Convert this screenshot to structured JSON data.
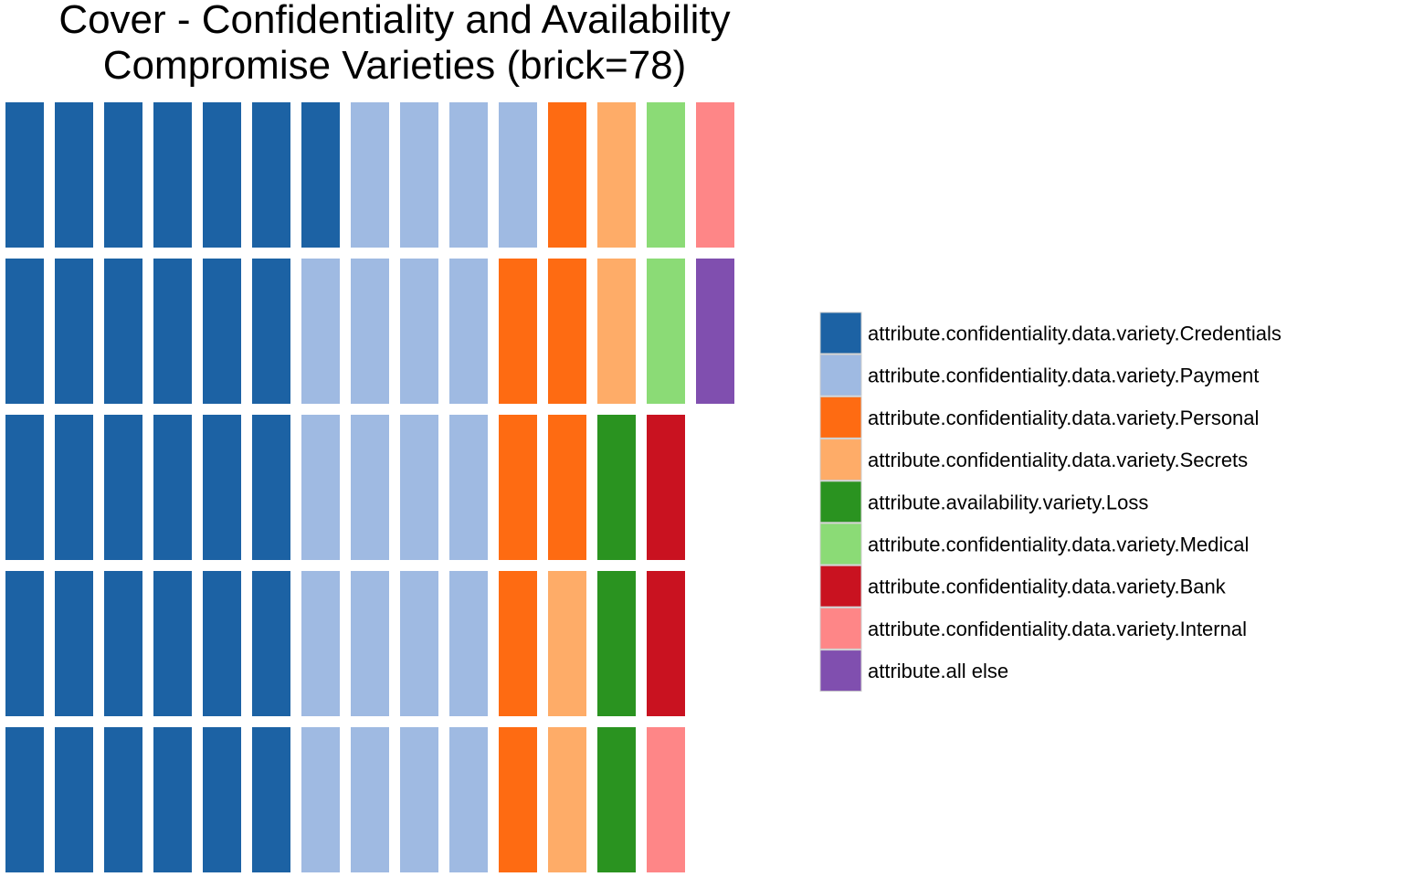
{
  "chart_data": {
    "type": "waffle",
    "title_lines": [
      "Cover - Confidentiality and Availability",
      "Compromise Varieties (brick=78)"
    ],
    "rows": 5,
    "columns": 15,
    "order": "column-major, top-to-bottom",
    "legend_position": "right",
    "categories": [
      {
        "name": "attribute.confidentiality.data.variety.Credentials",
        "bricks": 31,
        "color": "#1c62a4"
      },
      {
        "name": "attribute.confidentiality.data.variety.Payment",
        "bricks": 20,
        "color": "#9fbae2"
      },
      {
        "name": "attribute.confidentiality.data.variety.Personal",
        "bricks": 7,
        "color": "#fe6b12"
      },
      {
        "name": "attribute.confidentiality.data.variety.Secrets",
        "bricks": 4,
        "color": "#feac68"
      },
      {
        "name": "attribute.availability.variety.Loss",
        "bricks": 3,
        "color": "#2a9320"
      },
      {
        "name": "attribute.confidentiality.data.variety.Medical",
        "bricks": 2,
        "color": "#8bdb76"
      },
      {
        "name": "attribute.confidentiality.data.variety.Bank",
        "bricks": 2,
        "color": "#c91220"
      },
      {
        "name": "attribute.confidentiality.data.variety.Internal",
        "bricks": 2,
        "color": "#fe8687"
      },
      {
        "name": "attribute.all else",
        "bricks": 1,
        "color": "#804faf"
      }
    ]
  }
}
